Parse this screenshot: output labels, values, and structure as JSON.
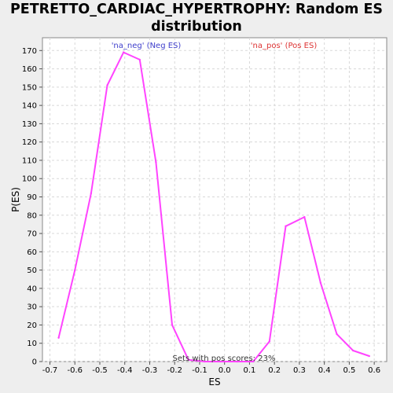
{
  "title_line1": "PETRETTO_CARDIAC_HYPERTROPHY: Random ES",
  "title_line2": "distribution",
  "chart_data": {
    "type": "line",
    "title": "PETRETTO_CARDIAC_HYPERTROPHY: Random ES distribution",
    "xlabel": "ES",
    "ylabel": "P(ES)",
    "xlim": [
      -0.73,
      0.65
    ],
    "ylim": [
      0,
      177
    ],
    "xticks": [
      "-0.7",
      "-0.6",
      "-0.5",
      "-0.4",
      "-0.3",
      "-0.2",
      "-0.1",
      "0.0",
      "0.1",
      "0.2",
      "0.3",
      "0.4",
      "0.5",
      "0.6"
    ],
    "yticks": [
      "0",
      "10",
      "20",
      "30",
      "40",
      "50",
      "60",
      "70",
      "80",
      "90",
      "100",
      "110",
      "120",
      "130",
      "140",
      "150",
      "160",
      "170"
    ],
    "grid": true,
    "series": [
      {
        "color": "#ff44ff",
        "x": [
          -0.665,
          -0.6,
          -0.535,
          -0.47,
          -0.405,
          -0.34,
          -0.275,
          -0.21,
          -0.145,
          -0.08,
          -0.015,
          0.05,
          0.115,
          0.18,
          0.245,
          0.32,
          0.385,
          0.45,
          0.515,
          0.58
        ],
        "y": [
          13,
          50,
          92,
          151,
          169,
          165,
          109,
          20,
          1,
          0,
          0,
          0,
          0,
          11,
          74,
          79,
          43,
          15,
          6,
          3
        ]
      }
    ],
    "legend": [
      {
        "label": "'na_neg' (Neg ES)",
        "color": "#4040cc"
      },
      {
        "label": "'na_pos' (Pos ES)",
        "color": "#dd3333"
      }
    ],
    "annotation": "Sets with pos scores: 23%"
  }
}
